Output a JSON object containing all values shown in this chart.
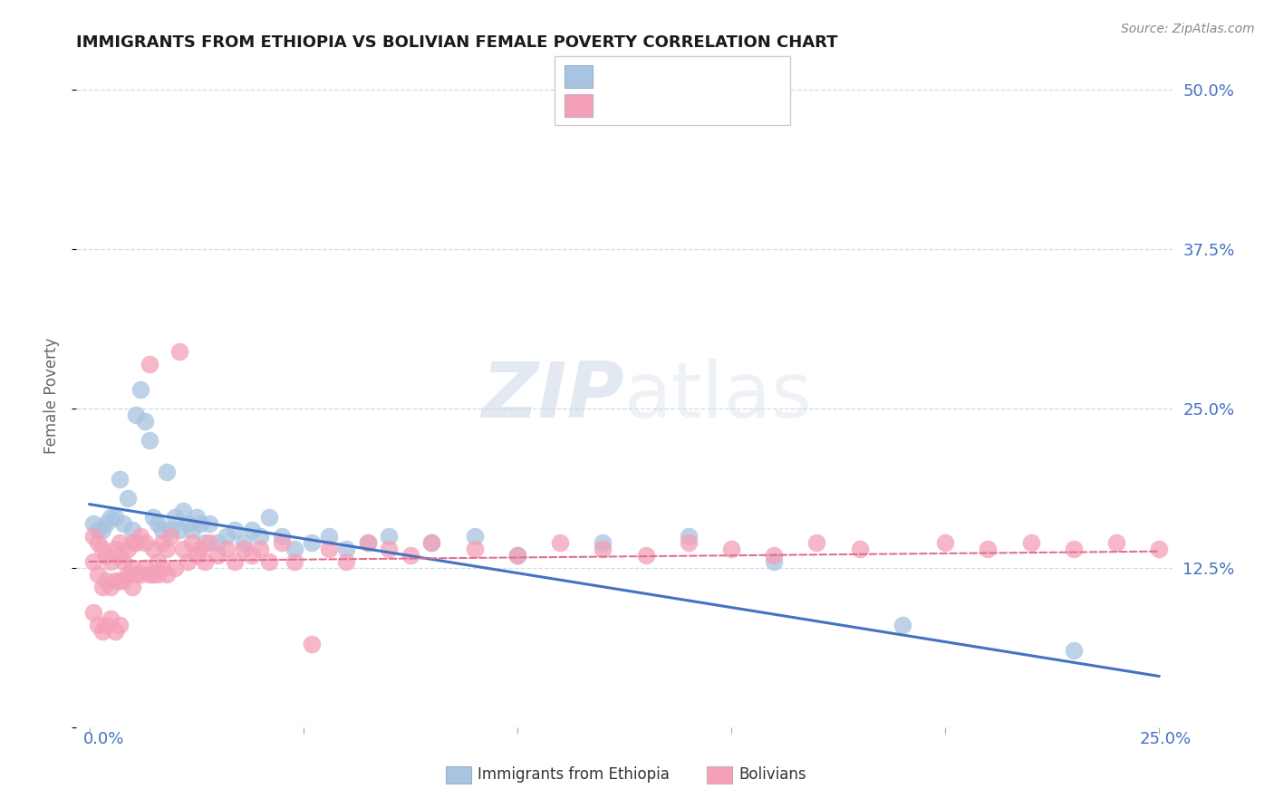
{
  "title": "IMMIGRANTS FROM ETHIOPIA VS BOLIVIAN FEMALE POVERTY CORRELATION CHART",
  "source": "Source: ZipAtlas.com",
  "ylabel": "Female Poverty",
  "xlim": [
    0.0,
    0.25
  ],
  "ylim": [
    0.0,
    0.5
  ],
  "color_blue": "#a8c4e0",
  "color_pink": "#f4a0b8",
  "line_blue": "#4472c4",
  "line_pink": "#e07090",
  "background": "#ffffff",
  "grid_color": "#c8d8ea",
  "blue_scatter_x": [
    0.001,
    0.002,
    0.003,
    0.004,
    0.005,
    0.006,
    0.007,
    0.008,
    0.009,
    0.01,
    0.011,
    0.012,
    0.013,
    0.014,
    0.015,
    0.016,
    0.017,
    0.018,
    0.019,
    0.02,
    0.021,
    0.022,
    0.023,
    0.024,
    0.025,
    0.026,
    0.027,
    0.028,
    0.03,
    0.032,
    0.034,
    0.036,
    0.038,
    0.04,
    0.042,
    0.045,
    0.048,
    0.052,
    0.056,
    0.06,
    0.065,
    0.07,
    0.08,
    0.09,
    0.1,
    0.12,
    0.14,
    0.16,
    0.19,
    0.23
  ],
  "blue_scatter_y": [
    0.16,
    0.155,
    0.155,
    0.16,
    0.165,
    0.165,
    0.195,
    0.16,
    0.18,
    0.155,
    0.245,
    0.265,
    0.24,
    0.225,
    0.165,
    0.16,
    0.155,
    0.2,
    0.155,
    0.165,
    0.155,
    0.17,
    0.16,
    0.155,
    0.165,
    0.16,
    0.145,
    0.16,
    0.145,
    0.15,
    0.155,
    0.145,
    0.155,
    0.15,
    0.165,
    0.15,
    0.14,
    0.145,
    0.15,
    0.14,
    0.145,
    0.15,
    0.145,
    0.15,
    0.135,
    0.145,
    0.15,
    0.13,
    0.08,
    0.06
  ],
  "pink_scatter_x": [
    0.001,
    0.001,
    0.002,
    0.002,
    0.003,
    0.003,
    0.004,
    0.004,
    0.005,
    0.005,
    0.006,
    0.006,
    0.007,
    0.007,
    0.007,
    0.008,
    0.008,
    0.009,
    0.009,
    0.01,
    0.01,
    0.01,
    0.011,
    0.011,
    0.012,
    0.012,
    0.013,
    0.013,
    0.014,
    0.014,
    0.015,
    0.015,
    0.016,
    0.016,
    0.017,
    0.017,
    0.018,
    0.018,
    0.019,
    0.02,
    0.021,
    0.022,
    0.023,
    0.024,
    0.025,
    0.026,
    0.027,
    0.028,
    0.03,
    0.032,
    0.034,
    0.036,
    0.038,
    0.04,
    0.042,
    0.045,
    0.048,
    0.052,
    0.056,
    0.06,
    0.065,
    0.07,
    0.075,
    0.08,
    0.09,
    0.1,
    0.11,
    0.12,
    0.13,
    0.14,
    0.15,
    0.16,
    0.17,
    0.18,
    0.2,
    0.21,
    0.22,
    0.23,
    0.24,
    0.25,
    0.001,
    0.002,
    0.003,
    0.004,
    0.005,
    0.006,
    0.007
  ],
  "pink_scatter_y": [
    0.15,
    0.13,
    0.145,
    0.12,
    0.14,
    0.11,
    0.135,
    0.115,
    0.13,
    0.11,
    0.14,
    0.115,
    0.135,
    0.115,
    0.145,
    0.13,
    0.115,
    0.14,
    0.12,
    0.145,
    0.125,
    0.11,
    0.145,
    0.12,
    0.15,
    0.12,
    0.145,
    0.125,
    0.285,
    0.12,
    0.14,
    0.12,
    0.13,
    0.12,
    0.145,
    0.125,
    0.14,
    0.12,
    0.15,
    0.125,
    0.295,
    0.14,
    0.13,
    0.145,
    0.135,
    0.14,
    0.13,
    0.145,
    0.135,
    0.14,
    0.13,
    0.14,
    0.135,
    0.14,
    0.13,
    0.145,
    0.13,
    0.065,
    0.14,
    0.13,
    0.145,
    0.14,
    0.135,
    0.145,
    0.14,
    0.135,
    0.145,
    0.14,
    0.135,
    0.145,
    0.14,
    0.135,
    0.145,
    0.14,
    0.145,
    0.14,
    0.145,
    0.14,
    0.145,
    0.14,
    0.09,
    0.08,
    0.075,
    0.08,
    0.085,
    0.075,
    0.08
  ],
  "blue_line_x0": 0.0,
  "blue_line_x1": 0.25,
  "blue_line_y0": 0.175,
  "blue_line_y1": 0.04,
  "pink_line_x0": 0.0,
  "pink_line_x1": 0.25,
  "pink_line_y0": 0.13,
  "pink_line_y1": 0.138
}
